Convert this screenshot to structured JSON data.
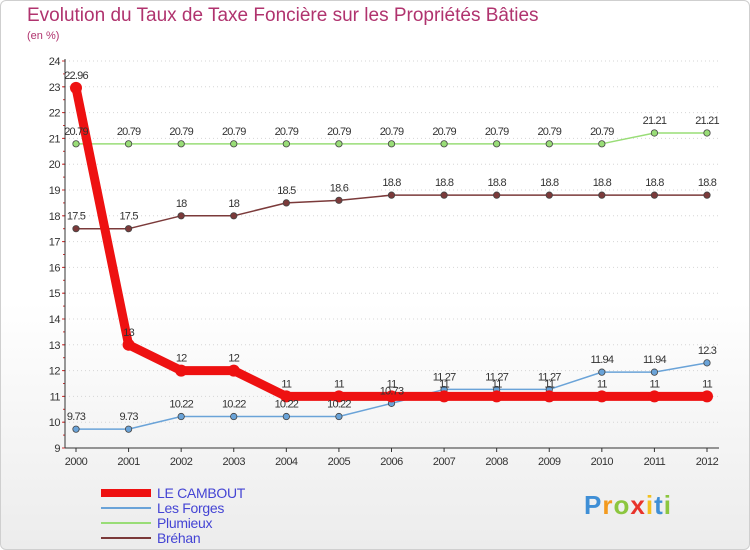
{
  "chart_data": {
    "type": "line",
    "title": "Evolution du Taux de Taxe Foncière sur les Propriétés Bâties",
    "subtitle": "(en %)",
    "xlabel": "",
    "ylabel": "",
    "categories": [
      "2000",
      "2001",
      "2002",
      "2003",
      "2004",
      "2005",
      "2006",
      "2007",
      "2008",
      "2009",
      "2010",
      "2011",
      "2012"
    ],
    "ylim": [
      9,
      24
    ],
    "yticks": [
      9,
      10,
      11,
      12,
      13,
      14,
      15,
      16,
      17,
      18,
      19,
      20,
      21,
      22,
      23,
      24
    ],
    "grid": "horizontal dotted",
    "series": [
      {
        "name": "LE CAMBOUT",
        "color": "#ee1111",
        "values": [
          22.96,
          13,
          12,
          12,
          11,
          11,
          11,
          11,
          11,
          11,
          11,
          11,
          11
        ],
        "labels": [
          "22.96",
          "13",
          "12",
          "12",
          "11",
          "11",
          "11",
          "11",
          "11",
          "11",
          "11",
          "11",
          "11"
        ]
      },
      {
        "name": "Les Forges",
        "color": "#6aa3d8",
        "values": [
          9.73,
          9.73,
          10.22,
          10.22,
          10.22,
          10.22,
          10.73,
          11.27,
          11.27,
          11.27,
          11.94,
          11.94,
          12.3
        ],
        "labels": [
          "9.73",
          "9.73",
          "10.22",
          "10.22",
          "10.22",
          "10.22",
          "10.73",
          "11.27",
          "11.27",
          "11.27",
          "11.94",
          "11.94",
          "12.3"
        ]
      },
      {
        "name": "Plumieux",
        "color": "#99dd77",
        "values": [
          20.79,
          20.79,
          20.79,
          20.79,
          20.79,
          20.79,
          20.79,
          20.79,
          20.79,
          20.79,
          20.79,
          21.21,
          21.21
        ],
        "labels": [
          "20.79",
          "20.79",
          "20.79",
          "20.79",
          "20.79",
          "20.79",
          "20.79",
          "20.79",
          "20.79",
          "20.79",
          "20.79",
          "21.21",
          "21.21"
        ]
      },
      {
        "name": "Bréhan",
        "color": "#7b3a3a",
        "values": [
          17.5,
          17.5,
          18,
          18,
          18.5,
          18.6,
          18.8,
          18.8,
          18.8,
          18.8,
          18.8,
          18.8,
          18.8
        ],
        "labels": [
          "17.5",
          "17.5",
          "18",
          "18",
          "18.5",
          "18.6",
          "18.8",
          "18.8",
          "18.8",
          "18.8",
          "18.8",
          "18.8",
          "18.8"
        ]
      }
    ]
  },
  "legend": [
    {
      "label": "LE CAMBOUT",
      "color": "#ee1111"
    },
    {
      "label": "Les Forges",
      "color": "#6aa3d8"
    },
    {
      "label": "Plumieux",
      "color": "#99dd77"
    },
    {
      "label": "Bréhan",
      "color": "#7b3a3a"
    }
  ],
  "logo": {
    "text": "Proxiti",
    "letters": [
      "P",
      "r",
      "o",
      "x",
      "i",
      "t",
      "i"
    ]
  }
}
